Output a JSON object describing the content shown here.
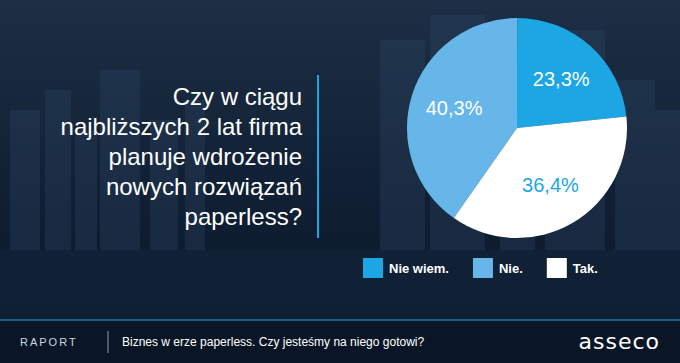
{
  "chart_data": {
    "type": "pie",
    "title": "Czy w ciągu najbliższych 2 lat firma planuje wdrożenie nowych rozwiązań paperless?",
    "categories": [
      "Nie wiem.",
      "Nie.",
      "Tak."
    ],
    "values": [
      23.3,
      40.3,
      36.4
    ],
    "value_labels": [
      "23,3%",
      "40,3%",
      "36,4%"
    ],
    "colors": [
      "#1ca6e4",
      "#66b6ea",
      "#ffffff"
    ],
    "data_labels": true,
    "legend": "bottom",
    "annotations": [
      "RAPORT",
      "Biznes w erze paperless. Czy jesteśmy na niego gotowi?",
      "asseco"
    ]
  }
}
